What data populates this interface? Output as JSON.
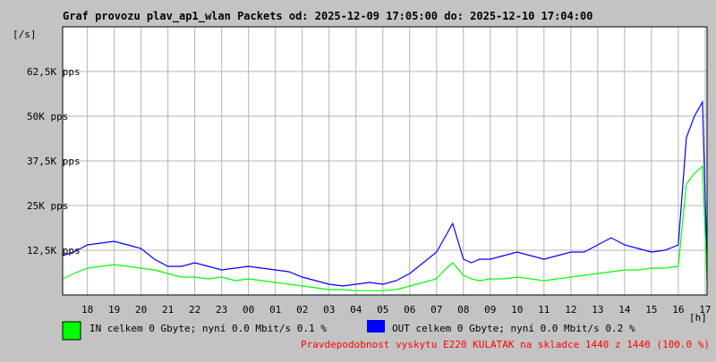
{
  "window": {
    "title": "Graf provozu plav_ap1_wlan Packets od: 2025-12-09 17:05:00 do: 2025-12-10 17:04:00"
  },
  "legend": {
    "in": {
      "text": "IN celkem 0 Gbyte; nyní   0.0 Mbit/s 0.1 %",
      "color": "#00ff00"
    },
    "out": {
      "text": "OUT celkem 0 Gbyte; nyní   0.0 Mbit/s 0.2 %",
      "color": "#0000ff"
    }
  },
  "footer": {
    "text": "Pravdepodobnost vyskytu E220 KULATAK na skladce 1440 z 1440 (100.0 %)"
  },
  "chart_data": {
    "type": "line",
    "title": "Graf provozu plav_ap1_wlan Packets od: 2025-12-09 17:05:00 do: 2025-12-10 17:04:00",
    "ylabel": "[/s]",
    "xlabel": "[h]",
    "ylim": [
      0,
      75000
    ],
    "xlim": [
      17.08,
      41.07
    ],
    "grid": true,
    "y_ticks": [
      12500,
      25000,
      37500,
      50000,
      62500
    ],
    "y_tick_labels": [
      "12,5K pps",
      "25K pps",
      "37,5K pps",
      "50K pps",
      "62,5K pps"
    ],
    "x_ticks": [
      18,
      19,
      20,
      21,
      22,
      23,
      24,
      25,
      26,
      27,
      28,
      29,
      30,
      31,
      32,
      33,
      34,
      35,
      36,
      37,
      38,
      39,
      40,
      41
    ],
    "x_tick_labels": [
      "18",
      "19",
      "20",
      "21",
      "22",
      "23",
      "00",
      "01",
      "02",
      "03",
      "04",
      "05",
      "06",
      "07",
      "08",
      "09",
      "10",
      "11",
      "12",
      "13",
      "14",
      "15",
      "16",
      "17"
    ],
    "series": [
      {
        "name": "IN",
        "color": "#00ff00",
        "x": [
          17.08,
          17.5,
          18,
          18.5,
          19,
          19.5,
          20,
          20.5,
          21,
          21.5,
          22,
          22.5,
          23,
          23.5,
          24,
          24.5,
          25,
          25.5,
          26,
          26.5,
          27,
          27.5,
          28,
          28.5,
          29,
          29.5,
          30,
          30.5,
          31,
          31.3,
          31.6,
          32,
          32.3,
          32.6,
          33,
          33.5,
          34,
          34.5,
          35,
          35.5,
          36,
          36.5,
          37,
          37.5,
          38,
          38.5,
          39,
          39.5,
          40,
          40.3,
          40.6,
          40.9,
          41.07
        ],
        "y": [
          4500,
          6000,
          7500,
          8000,
          8500,
          8000,
          7500,
          7000,
          6000,
          5000,
          5000,
          4500,
          5000,
          4000,
          4500,
          4000,
          3500,
          3000,
          2500,
          2000,
          1500,
          1500,
          1200,
          1200,
          1200,
          1500,
          2500,
          3500,
          4500,
          7000,
          9000,
          5500,
          4500,
          4000,
          4500,
          4500,
          5000,
          4500,
          4000,
          4500,
          5000,
          5500,
          6000,
          6500,
          7000,
          7000,
          7500,
          7500,
          8000,
          31000,
          34000,
          36000,
          4000
        ]
      },
      {
        "name": "OUT",
        "color": "#0000ff",
        "x": [
          17.08,
          17.5,
          18,
          18.5,
          19,
          19.5,
          20,
          20.5,
          21,
          21.5,
          22,
          22.5,
          23,
          23.5,
          24,
          24.5,
          25,
          25.5,
          26,
          26.5,
          27,
          27.5,
          28,
          28.5,
          29,
          29.5,
          30,
          30.5,
          31,
          31.3,
          31.6,
          32,
          32.3,
          32.6,
          33,
          33.5,
          34,
          34.5,
          35,
          35.5,
          36,
          36.5,
          37,
          37.5,
          38,
          38.5,
          39,
          39.5,
          40,
          40.3,
          40.6,
          40.9,
          41.07
        ],
        "y": [
          11000,
          12000,
          14000,
          14500,
          15000,
          14000,
          13000,
          10000,
          8000,
          8000,
          9000,
          8000,
          7000,
          7500,
          8000,
          7500,
          7000,
          6500,
          5000,
          4000,
          3000,
          2500,
          3000,
          3500,
          3000,
          4000,
          6000,
          9000,
          12000,
          16000,
          20000,
          10000,
          9000,
          10000,
          10000,
          11000,
          12000,
          11000,
          10000,
          11000,
          12000,
          12000,
          14000,
          16000,
          14000,
          13000,
          12000,
          12500,
          14000,
          44000,
          50000,
          54000,
          9000
        ]
      }
    ]
  }
}
